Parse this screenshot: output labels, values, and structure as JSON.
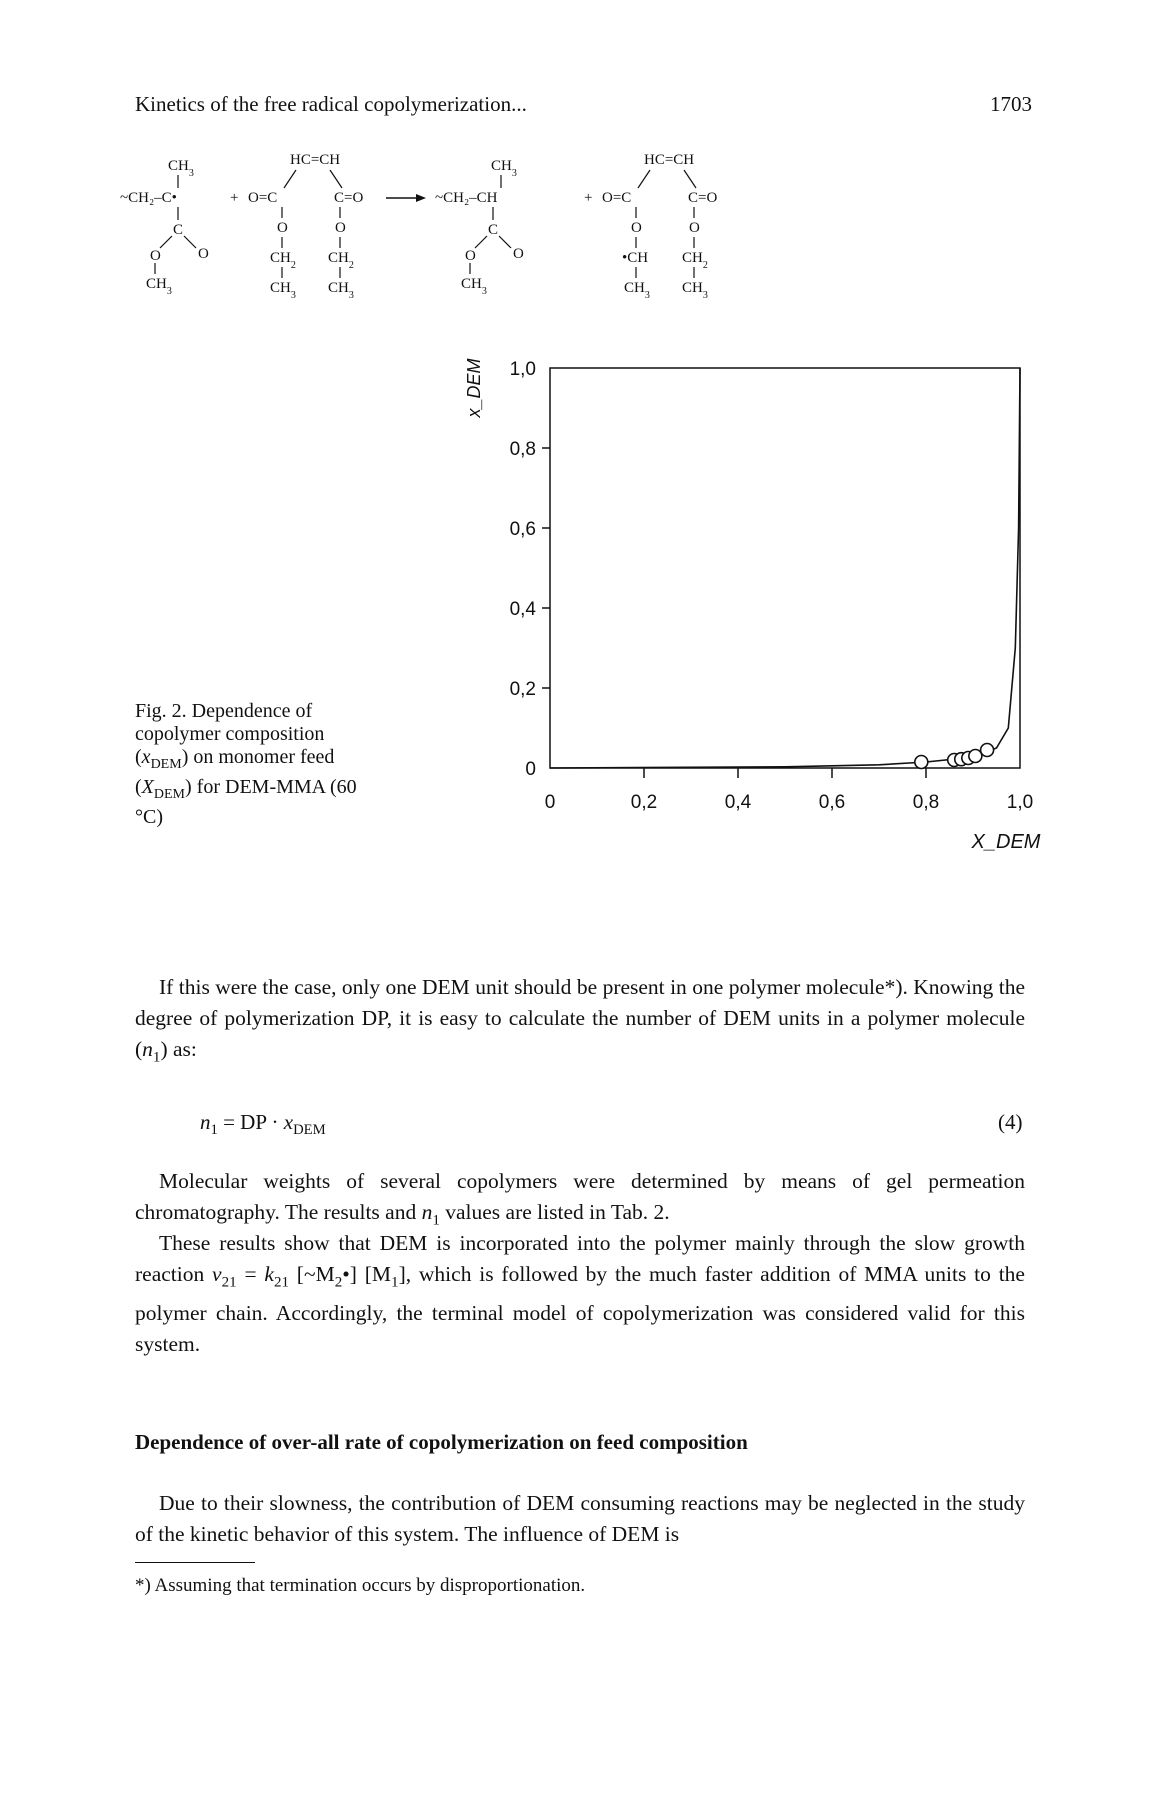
{
  "header": {
    "running_title": "Kinetics of the free radical copolymerization...",
    "page_number": "1703"
  },
  "scheme": {
    "ch3": "CH",
    "ch3_sub": "3",
    "ch2": "CH",
    "ch2_sub": "2",
    "radical_chain": "~CH₂–C•",
    "product_chain": "~CH₂–CH",
    "plus": "+",
    "hc_ch": "HC=CH",
    "o_eq_c": "O=C",
    "c_eq_o": "C=O",
    "o": "O",
    "c": "C",
    "ch_radical": "•CH"
  },
  "figure": {
    "caption_html": "Fig. 2. Dependence of copolymer composition (<i>x</i><sub>DEM</sub>) on monomer feed (<i>X</i><sub>DEM</sub>) for DEM-MMA (60 °C)"
  },
  "chart_data": {
    "type": "scatter",
    "title": "",
    "xlabel": "X_DEM",
    "ylabel": "x_DEM",
    "xlim": [
      0,
      1.0
    ],
    "ylim": [
      0,
      1.0
    ],
    "x_ticks": [
      "0",
      "0,2",
      "0,4",
      "0,6",
      "0,8",
      "1,0"
    ],
    "y_ticks": [
      "0",
      "0,2",
      "0,4",
      "0,6",
      "0,8",
      "1,0"
    ],
    "grid": false,
    "points": [
      {
        "x": 0.79,
        "y": 0.015
      },
      {
        "x": 0.86,
        "y": 0.02
      },
      {
        "x": 0.875,
        "y": 0.022
      },
      {
        "x": 0.89,
        "y": 0.025
      },
      {
        "x": 0.905,
        "y": 0.03
      },
      {
        "x": 0.93,
        "y": 0.045
      }
    ],
    "curve": [
      {
        "x": 0,
        "y": 0
      },
      {
        "x": 0.5,
        "y": 0.003
      },
      {
        "x": 0.7,
        "y": 0.008
      },
      {
        "x": 0.8,
        "y": 0.015
      },
      {
        "x": 0.9,
        "y": 0.027
      },
      {
        "x": 0.95,
        "y": 0.05
      },
      {
        "x": 0.975,
        "y": 0.1
      },
      {
        "x": 0.99,
        "y": 0.3
      },
      {
        "x": 0.997,
        "y": 0.6
      },
      {
        "x": 1.0,
        "y": 1.0
      }
    ]
  },
  "paragraphs": [
    "If this were the case, only one DEM unit should be present in one polymer molecule*). Knowing the degree of polymerization DP, it is easy to calculate the number of DEM units in a polymer molecule (<i>n</i><sub>1</sub>) as:",
    "Molecular weights of several copolymers were determined by means of gel permeation chromatography. The results and <i>n</i><sub>1</sub> values are listed in Tab. 2.",
    "These results show that DEM is incorporated into the polymer mainly through the slow growth reaction <i>v</i><sub>21</sub> = <i>k</i><sub>21</sub> [~M<sub>2</sub>•] [M<sub>1</sub>], which is followed by the much faster addition of MMA units to the polymer chain. Accordingly, the terminal model of copolymerization was considered valid for this system.",
    "Due to their slowness, the contribution of DEM consuming reactions may be neglected in the study of the kinetic behavior of this system. The influence of DEM is"
  ],
  "equation": {
    "html": "<i>n</i><sub>1</sub> = DP · <i>x</i><sub>DEM</sub>",
    "number": "(4)"
  },
  "section_heading": "Dependence of over-all rate of copolymerization on feed composition",
  "footnote": "*) Assuming that termination occurs by disproportionation."
}
